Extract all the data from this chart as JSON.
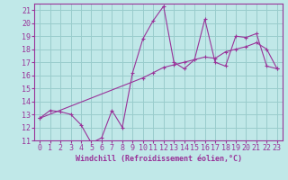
{
  "title": "",
  "xlabel": "Windchill (Refroidissement éolien,°C)",
  "ylabel": "",
  "bg_color": "#c0e8e8",
  "line_color": "#993399",
  "marker": "+",
  "xlim": [
    -0.5,
    23.5
  ],
  "ylim": [
    11,
    21.5
  ],
  "xticks": [
    0,
    1,
    2,
    3,
    4,
    5,
    6,
    7,
    8,
    9,
    10,
    11,
    12,
    13,
    14,
    15,
    16,
    17,
    18,
    19,
    20,
    21,
    22,
    23
  ],
  "yticks": [
    11,
    12,
    13,
    14,
    15,
    16,
    17,
    18,
    19,
    20,
    21
  ],
  "grid_color": "#99cccc",
  "line1_x": [
    0,
    1,
    2,
    3,
    4,
    5,
    6,
    7,
    8,
    9,
    10,
    11,
    12,
    13,
    14,
    15,
    16,
    17,
    18,
    19,
    20,
    21,
    22,
    23
  ],
  "line1_y": [
    12.7,
    13.3,
    13.2,
    13.0,
    12.2,
    10.8,
    11.2,
    13.3,
    12.0,
    16.2,
    18.8,
    20.2,
    21.3,
    17.0,
    16.5,
    17.2,
    20.3,
    17.0,
    16.7,
    19.0,
    18.9,
    19.2,
    16.7,
    16.5
  ],
  "line2_x": [
    0,
    10,
    11,
    12,
    13,
    14,
    15,
    16,
    17,
    18,
    19,
    20,
    21,
    22,
    23
  ],
  "line2_y": [
    12.7,
    15.8,
    16.2,
    16.6,
    16.8,
    17.0,
    17.2,
    17.4,
    17.3,
    17.8,
    18.0,
    18.2,
    18.5,
    18.0,
    16.5
  ],
  "xlabel_fontsize": 6,
  "tick_fontsize": 6,
  "linewidth": 0.8,
  "markersize": 3,
  "markeredgewidth": 0.8
}
